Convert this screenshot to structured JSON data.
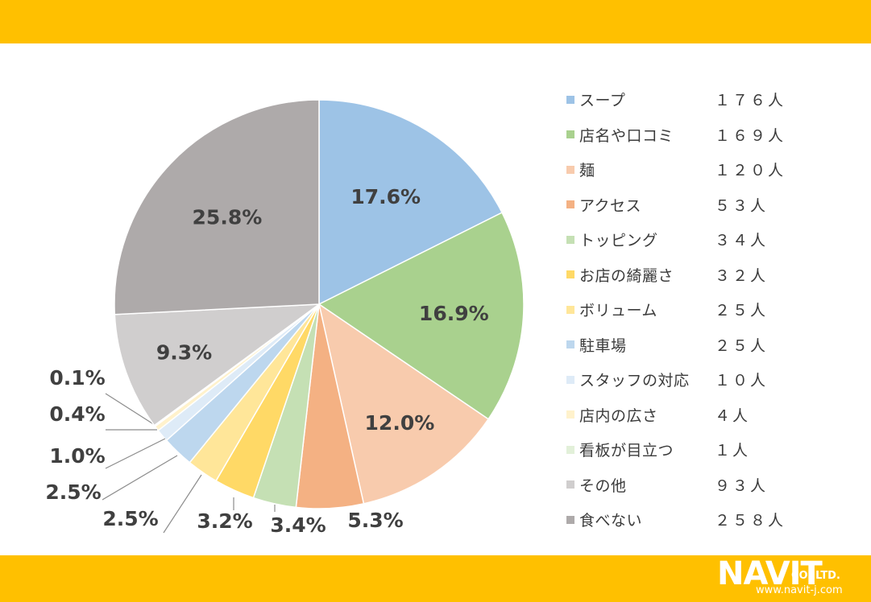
{
  "colors": {
    "band": "#FFC000",
    "label_text": "#404040",
    "leader_line": "#8c8c8c",
    "slice_border": "#ffffff"
  },
  "brand": {
    "name": "NAVIT",
    "suffix": "CO.,LTD.",
    "url": "www.navit-j.com"
  },
  "chart_data": {
    "type": "pie",
    "legend_position": "right",
    "slices": [
      {
        "label": "スープ",
        "count_label": "１７６人",
        "percent": 17.6,
        "percent_label": "17.6%",
        "color": "#9DC3E6"
      },
      {
        "label": "店名や口コミ",
        "count_label": "１６９人",
        "percent": 16.9,
        "percent_label": "16.9%",
        "color": "#A9D18E"
      },
      {
        "label": "麺",
        "count_label": "１２０人",
        "percent": 12.0,
        "percent_label": "12.0%",
        "color": "#F8CBAD"
      },
      {
        "label": "アクセス",
        "count_label": "５３人",
        "percent": 5.3,
        "percent_label": "5.3%",
        "color": "#F4B183"
      },
      {
        "label": "トッピング",
        "count_label": "３４人",
        "percent": 3.4,
        "percent_label": "3.4%",
        "color": "#C5E0B4"
      },
      {
        "label": "お店の綺麗さ",
        "count_label": "３２人",
        "percent": 3.2,
        "percent_label": "3.2%",
        "color": "#FFD966"
      },
      {
        "label": "ボリューム",
        "count_label": "２５人",
        "percent": 2.5,
        "percent_label": "2.5%",
        "color": "#FFE699"
      },
      {
        "label": "駐車場",
        "count_label": "２５人",
        "percent": 2.5,
        "percent_label": "2.5%",
        "color": "#BDD7EE"
      },
      {
        "label": "スタッフの対応",
        "count_label": "１０人",
        "percent": 1.0,
        "percent_label": "1.0%",
        "color": "#DEEBF7"
      },
      {
        "label": "店内の広さ",
        "count_label": "４人",
        "percent": 0.4,
        "percent_label": "0.4%",
        "color": "#FFF2CC"
      },
      {
        "label": "看板が目立つ",
        "count_label": "１人",
        "percent": 0.1,
        "percent_label": "0.1%",
        "color": "#E2F0D9"
      },
      {
        "label": "その他",
        "count_label": "９３人",
        "percent": 9.3,
        "percent_label": "9.3%",
        "color": "#D0CECE"
      },
      {
        "label": "食べない",
        "count_label": "２５８人",
        "percent": 25.8,
        "percent_label": "25.8%",
        "color": "#AEAAAA"
      }
    ]
  }
}
